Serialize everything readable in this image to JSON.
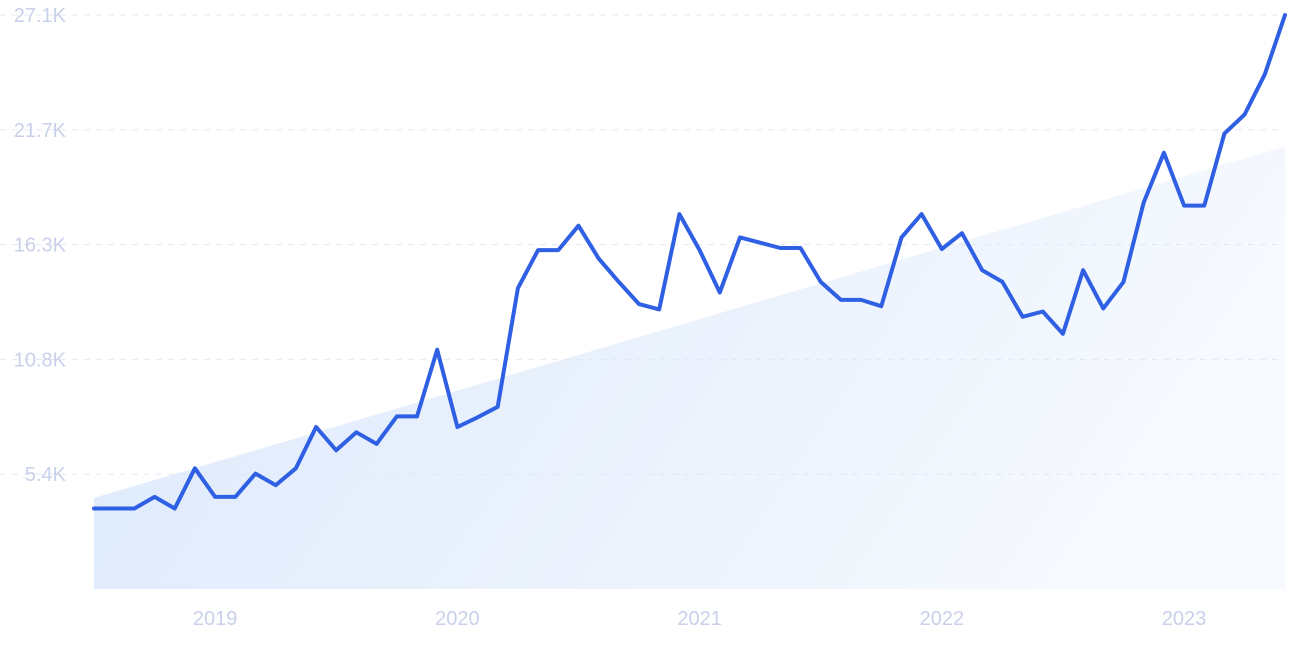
{
  "chart_data": {
    "type": "line",
    "title": "",
    "xlabel": "",
    "ylabel": "",
    "x_tick_labels": [
      "2019",
      "2020",
      "2021",
      "2022",
      "2023"
    ],
    "y_tick_labels": [
      "27.1K",
      "21.7K",
      "16.3K",
      "10.8K",
      "5.4K"
    ],
    "ylim": [
      0,
      27100
    ],
    "xlim": [
      "2018-07",
      "2023-06"
    ],
    "grid": true,
    "x": [
      "2018-07",
      "2018-08",
      "2018-09",
      "2018-10",
      "2018-11",
      "2018-12",
      "2019-01",
      "2019-02",
      "2019-03",
      "2019-04",
      "2019-05",
      "2019-06",
      "2019-07",
      "2019-08",
      "2019-09",
      "2019-10",
      "2019-11",
      "2019-12",
      "2020-01",
      "2020-02",
      "2020-03",
      "2020-04",
      "2020-05",
      "2020-06",
      "2020-07",
      "2020-08",
      "2020-09",
      "2020-10",
      "2020-11",
      "2020-12",
      "2021-01",
      "2021-02",
      "2021-03",
      "2021-04",
      "2021-05",
      "2021-06",
      "2021-07",
      "2021-08",
      "2021-09",
      "2021-10",
      "2021-11",
      "2021-12",
      "2022-01",
      "2022-02",
      "2022-03",
      "2022-04",
      "2022-05",
      "2022-06",
      "2022-07",
      "2022-08",
      "2022-09",
      "2022-10",
      "2022-11",
      "2022-12",
      "2023-01",
      "2023-02",
      "2023-03",
      "2023-04",
      "2023-05",
      "2023-06"
    ],
    "series": [
      {
        "values": [
          3800,
          3800,
          3800,
          4350,
          3800,
          5700,
          4350,
          4350,
          5450,
          4900,
          5700,
          7650,
          6550,
          7400,
          6850,
          8150,
          8150,
          11300,
          7650,
          8100,
          8600,
          14200,
          16000,
          16000,
          17150,
          15600,
          14500,
          13450,
          13200,
          17700,
          16000,
          14000,
          16600,
          16350,
          16100,
          16100,
          14500,
          13650,
          13650,
          13350,
          16600,
          17700,
          16050,
          16800,
          15050,
          14500,
          12850,
          13100,
          12050,
          15050,
          13250,
          14500,
          18250,
          20600,
          18100,
          18100,
          21500,
          22400,
          24300,
          27100
        ],
        "color": "#2f5fe3"
      }
    ],
    "trend": {
      "start": 4300,
      "end": 20900,
      "color": "#dce9fb"
    }
  }
}
